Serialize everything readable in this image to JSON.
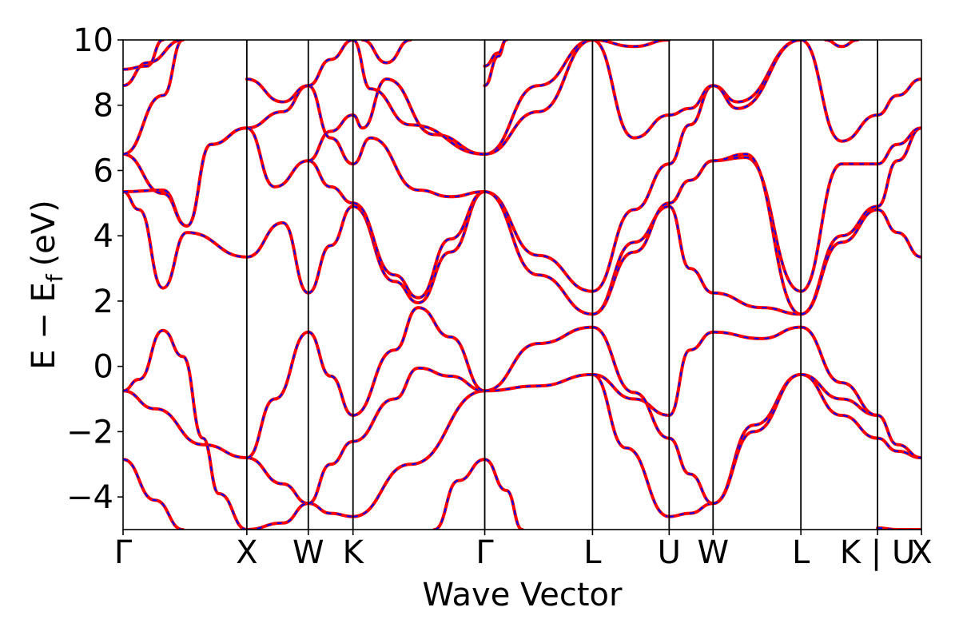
{
  "chart_data": {
    "type": "line",
    "xlabel": "Wave Vector",
    "ylabel": "E − E",
    "ylabel_subscript": "f",
    "ylabel_unit": "(eV)",
    "ylim": [
      -5,
      10
    ],
    "yticks": [
      -4,
      -2,
      0,
      2,
      4,
      6,
      8,
      10
    ],
    "ytick_labels": [
      "−4",
      "−2",
      "0",
      "2",
      "4",
      "6",
      "8",
      "10"
    ],
    "grid": false,
    "legend": "none",
    "xticks": [
      {
        "label": "Γ",
        "x": 0.0
      },
      {
        "label": "X",
        "x": 0.155
      },
      {
        "label": "W",
        "x": 0.232
      },
      {
        "label": "K",
        "x": 0.288
      },
      {
        "label": "Γ",
        "x": 0.453
      },
      {
        "label": "L",
        "x": 0.588
      },
      {
        "label": "U",
        "x": 0.684
      },
      {
        "label": "W",
        "x": 0.739
      },
      {
        "label": "L",
        "x": 0.849
      },
      {
        "label": "K | U",
        "x": 0.945
      },
      {
        "label": "X",
        "x": 1.0
      }
    ],
    "series": [
      {
        "style": "solid",
        "color": "#ff0000"
      },
      {
        "style": "dashed",
        "color": "#0000ff"
      }
    ],
    "bands": [
      [
        [
          0,
          -2.85
        ],
        [
          0.04,
          -4.1
        ],
        [
          0.075,
          -5.0
        ]
      ],
      [
        [
          0,
          -0.75
        ],
        [
          0.04,
          -1.3
        ],
        [
          0.1,
          -2.4
        ],
        [
          0.155,
          -2.8
        ]
      ],
      [
        [
          0,
          -0.75
        ],
        [
          0.02,
          -0.4
        ],
        [
          0.05,
          1.1
        ],
        [
          0.075,
          0.3
        ],
        [
          0.1,
          -2.2
        ],
        [
          0.12,
          -3.9
        ],
        [
          0.155,
          -5.0
        ]
      ],
      [
        [
          0,
          5.35
        ],
        [
          0.02,
          4.8
        ],
        [
          0.05,
          2.4
        ],
        [
          0.08,
          4.1
        ],
        [
          0.155,
          3.35
        ]
      ],
      [
        [
          0,
          5.35
        ],
        [
          0.05,
          5.4
        ],
        [
          0.08,
          4.3
        ],
        [
          0.11,
          6.8
        ],
        [
          0.155,
          7.3
        ]
      ],
      [
        [
          0,
          6.5
        ],
        [
          0.05,
          5.3
        ],
        [
          0.08,
          4.3
        ],
        [
          0.11,
          6.8
        ],
        [
          0.155,
          7.3
        ]
      ],
      [
        [
          0,
          6.5
        ],
        [
          0.05,
          8.3
        ],
        [
          0.075,
          10.0
        ]
      ],
      [
        [
          0,
          8.6
        ],
        [
          0.03,
          9.3
        ],
        [
          0.075,
          10.0
        ]
      ],
      [
        [
          0,
          9.1
        ],
        [
          0.03,
          9.2
        ],
        [
          0.05,
          10.0
        ]
      ],
      [
        [
          0.155,
          -2.8
        ],
        [
          0.2,
          -3.6
        ],
        [
          0.232,
          -4.2
        ]
      ],
      [
        [
          0.155,
          -5.0
        ],
        [
          0.2,
          -4.8
        ],
        [
          0.232,
          -4.2
        ]
      ],
      [
        [
          0.155,
          -2.8
        ],
        [
          0.19,
          -1.0
        ],
        [
          0.232,
          1.05
        ]
      ],
      [
        [
          0.155,
          3.35
        ],
        [
          0.2,
          4.4
        ],
        [
          0.232,
          2.25
        ]
      ],
      [
        [
          0.155,
          7.3
        ],
        [
          0.2,
          7.8
        ],
        [
          0.232,
          8.6
        ]
      ],
      [
        [
          0.155,
          8.8
        ],
        [
          0.2,
          8.1
        ],
        [
          0.232,
          8.6
        ]
      ],
      [
        [
          0.155,
          7.3
        ],
        [
          0.19,
          5.5
        ],
        [
          0.232,
          6.3
        ]
      ],
      [
        [
          0.232,
          -4.2
        ],
        [
          0.26,
          -4.5
        ],
        [
          0.288,
          -4.6
        ]
      ],
      [
        [
          0.232,
          1.05
        ],
        [
          0.26,
          -0.3
        ],
        [
          0.288,
          -1.5
        ]
      ],
      [
        [
          0.232,
          -4.2
        ],
        [
          0.26,
          -3.0
        ],
        [
          0.288,
          -2.3
        ]
      ],
      [
        [
          0.232,
          2.25
        ],
        [
          0.26,
          3.7
        ],
        [
          0.288,
          4.9
        ]
      ],
      [
        [
          0.232,
          6.3
        ],
        [
          0.26,
          5.5
        ],
        [
          0.288,
          5.0
        ]
      ],
      [
        [
          0.232,
          6.3
        ],
        [
          0.26,
          7.2
        ],
        [
          0.288,
          7.7
        ]
      ],
      [
        [
          0.232,
          8.6
        ],
        [
          0.26,
          7.0
        ],
        [
          0.288,
          6.2
        ]
      ],
      [
        [
          0.232,
          8.6
        ],
        [
          0.26,
          9.4
        ],
        [
          0.288,
          10.0
        ]
      ],
      [
        [
          0.288,
          -4.6
        ],
        [
          0.36,
          -3.0
        ],
        [
          0.453,
          -0.75
        ]
      ],
      [
        [
          0.288,
          -2.3
        ],
        [
          0.34,
          -1.0
        ],
        [
          0.37,
          -0.05
        ],
        [
          0.41,
          -0.3
        ],
        [
          0.453,
          -0.75
        ]
      ],
      [
        [
          0.288,
          -1.5
        ],
        [
          0.34,
          0.5
        ],
        [
          0.37,
          1.8
        ],
        [
          0.41,
          0.9
        ],
        [
          0.453,
          -0.75
        ]
      ],
      [
        [
          0.288,
          4.9
        ],
        [
          0.34,
          2.6
        ],
        [
          0.37,
          1.95
        ],
        [
          0.41,
          3.5
        ],
        [
          0.453,
          5.35
        ]
      ],
      [
        [
          0.288,
          5.0
        ],
        [
          0.34,
          2.8
        ],
        [
          0.37,
          2.1
        ],
        [
          0.41,
          3.9
        ],
        [
          0.453,
          5.35
        ]
      ],
      [
        [
          0.288,
          6.2
        ],
        [
          0.31,
          7.0
        ],
        [
          0.37,
          5.4
        ],
        [
          0.41,
          5.2
        ],
        [
          0.453,
          5.35
        ]
      ],
      [
        [
          0.288,
          7.7
        ],
        [
          0.3,
          7.3
        ],
        [
          0.33,
          8.8
        ],
        [
          0.39,
          7.1
        ],
        [
          0.453,
          6.5
        ]
      ],
      [
        [
          0.288,
          10.0
        ],
        [
          0.31,
          8.5
        ],
        [
          0.36,
          7.4
        ],
        [
          0.453,
          6.5
        ]
      ],
      [
        [
          0.3,
          10.0
        ],
        [
          0.33,
          9.3
        ],
        [
          0.36,
          10.0
        ]
      ],
      [
        [
          0.39,
          -5.0
        ],
        [
          0.42,
          -3.5
        ],
        [
          0.453,
          -2.85
        ]
      ],
      [
        [
          0.453,
          -2.85
        ],
        [
          0.48,
          -3.8
        ],
        [
          0.5,
          -5.0
        ]
      ],
      [
        [
          0.453,
          -0.75
        ],
        [
          0.52,
          -0.6
        ],
        [
          0.588,
          -0.25
        ]
      ],
      [
        [
          0.453,
          -0.75
        ],
        [
          0.52,
          0.7
        ],
        [
          0.588,
          1.2
        ]
      ],
      [
        [
          0.453,
          5.35
        ],
        [
          0.52,
          3.4
        ],
        [
          0.588,
          2.3
        ]
      ],
      [
        [
          0.453,
          5.35
        ],
        [
          0.52,
          2.8
        ],
        [
          0.588,
          1.6
        ]
      ],
      [
        [
          0.453,
          6.5
        ],
        [
          0.52,
          8.6
        ],
        [
          0.588,
          10.0
        ]
      ],
      [
        [
          0.453,
          6.5
        ],
        [
          0.52,
          7.8
        ],
        [
          0.588,
          10.0
        ]
      ],
      [
        [
          0.453,
          8.6
        ],
        [
          0.47,
          9.5
        ],
        [
          0.48,
          10.0
        ]
      ],
      [
        [
          0.453,
          9.2
        ],
        [
          0.47,
          9.6
        ],
        [
          0.48,
          10.0
        ]
      ],
      [
        [
          0.588,
          -0.25
        ],
        [
          0.63,
          -2.5
        ],
        [
          0.684,
          -4.6
        ]
      ],
      [
        [
          0.588,
          -0.25
        ],
        [
          0.64,
          -1.0
        ],
        [
          0.684,
          -1.5
        ]
      ],
      [
        [
          0.588,
          1.2
        ],
        [
          0.64,
          -0.8
        ],
        [
          0.684,
          -2.2
        ]
      ],
      [
        [
          0.588,
          1.6
        ],
        [
          0.64,
          3.8
        ],
        [
          0.684,
          4.9
        ]
      ],
      [
        [
          0.588,
          1.6
        ],
        [
          0.64,
          3.5
        ],
        [
          0.684,
          5.0
        ]
      ],
      [
        [
          0.588,
          2.3
        ],
        [
          0.64,
          4.8
        ],
        [
          0.684,
          6.2
        ]
      ],
      [
        [
          0.588,
          10.0
        ],
        [
          0.64,
          7.0
        ],
        [
          0.684,
          7.7
        ]
      ],
      [
        [
          0.588,
          10.0
        ],
        [
          0.64,
          9.8
        ],
        [
          0.684,
          10.0
        ]
      ],
      [
        [
          0.684,
          -4.6
        ],
        [
          0.71,
          -4.5
        ],
        [
          0.739,
          -4.2
        ]
      ],
      [
        [
          0.684,
          -2.2
        ],
        [
          0.71,
          -3.3
        ],
        [
          0.739,
          -4.2
        ]
      ],
      [
        [
          0.684,
          -1.5
        ],
        [
          0.71,
          0.5
        ],
        [
          0.739,
          1.05
        ]
      ],
      [
        [
          0.684,
          4.9
        ],
        [
          0.71,
          3.0
        ],
        [
          0.739,
          2.25
        ]
      ],
      [
        [
          0.684,
          5.0
        ],
        [
          0.71,
          5.7
        ],
        [
          0.739,
          6.3
        ]
      ],
      [
        [
          0.684,
          6.2
        ],
        [
          0.71,
          7.4
        ],
        [
          0.739,
          8.6
        ]
      ],
      [
        [
          0.684,
          7.7
        ],
        [
          0.71,
          7.9
        ],
        [
          0.739,
          8.6
        ]
      ],
      [
        [
          0.739,
          -4.2
        ],
        [
          0.79,
          -1.8
        ],
        [
          0.849,
          -0.25
        ]
      ],
      [
        [
          0.739,
          -4.2
        ],
        [
          0.79,
          -2.0
        ],
        [
          0.849,
          -0.25
        ]
      ],
      [
        [
          0.739,
          1.05
        ],
        [
          0.8,
          0.85
        ],
        [
          0.849,
          1.2
        ]
      ],
      [
        [
          0.739,
          2.25
        ],
        [
          0.8,
          1.8
        ],
        [
          0.849,
          1.6
        ]
      ],
      [
        [
          0.739,
          6.3
        ],
        [
          0.78,
          6.4
        ],
        [
          0.849,
          2.3
        ]
      ],
      [
        [
          0.739,
          6.3
        ],
        [
          0.78,
          6.5
        ],
        [
          0.849,
          1.6
        ]
      ],
      [
        [
          0.739,
          8.6
        ],
        [
          0.77,
          8.1
        ],
        [
          0.849,
          10.0
        ]
      ],
      [
        [
          0.739,
          8.6
        ],
        [
          0.77,
          7.9
        ],
        [
          0.849,
          10.0
        ]
      ],
      [
        [
          0.849,
          -0.25
        ],
        [
          0.9,
          -1.5
        ],
        [
          0.945,
          -2.2
        ]
      ],
      [
        [
          0.849,
          -0.25
        ],
        [
          0.9,
          -1.0
        ],
        [
          0.945,
          -1.5
        ]
      ],
      [
        [
          0.849,
          1.2
        ],
        [
          0.9,
          -0.5
        ],
        [
          0.945,
          -1.5
        ]
      ],
      [
        [
          0.849,
          1.6
        ],
        [
          0.9,
          4.0
        ],
        [
          0.945,
          4.9
        ]
      ],
      [
        [
          0.849,
          1.6
        ],
        [
          0.9,
          3.8
        ],
        [
          0.945,
          4.8
        ]
      ],
      [
        [
          0.849,
          2.3
        ],
        [
          0.9,
          6.2
        ],
        [
          0.945,
          6.2
        ]
      ],
      [
        [
          0.849,
          10.0
        ],
        [
          0.9,
          6.9
        ],
        [
          0.945,
          7.7
        ]
      ],
      [
        [
          0.88,
          10.0
        ],
        [
          0.9,
          9.8
        ],
        [
          0.92,
          10.0
        ]
      ],
      [
        [
          0.945,
          -2.2
        ],
        [
          0.97,
          -2.6
        ],
        [
          1.0,
          -2.8
        ]
      ],
      [
        [
          0.945,
          -1.5
        ],
        [
          0.97,
          -2.4
        ],
        [
          1.0,
          -2.8
        ]
      ],
      [
        [
          0.945,
          4.9
        ],
        [
          0.97,
          6.3
        ],
        [
          1.0,
          7.3
        ]
      ],
      [
        [
          0.945,
          4.8
        ],
        [
          0.97,
          4.1
        ],
        [
          1.0,
          3.35
        ]
      ],
      [
        [
          0.945,
          6.2
        ],
        [
          0.97,
          6.8
        ],
        [
          1.0,
          7.3
        ]
      ],
      [
        [
          0.945,
          7.7
        ],
        [
          0.97,
          8.3
        ],
        [
          1.0,
          8.8
        ]
      ],
      [
        [
          0.945,
          -4.95
        ],
        [
          0.97,
          -5.0
        ],
        [
          1.0,
          -5.0
        ]
      ]
    ]
  }
}
